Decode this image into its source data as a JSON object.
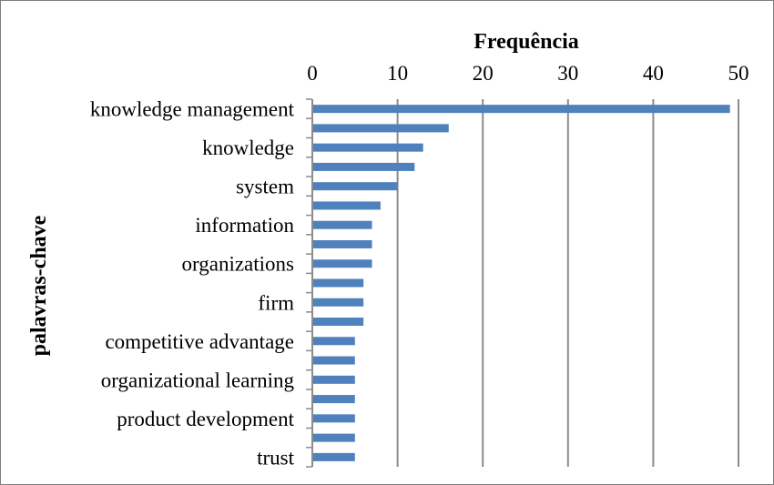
{
  "chart_data": {
    "type": "bar",
    "orientation": "horizontal",
    "title": "Frequência",
    "xlabel": "Frequência",
    "ylabel": "palavras-chave",
    "xlim": [
      0,
      50
    ],
    "x_ticks": [
      0,
      10,
      20,
      30,
      40,
      50
    ],
    "x_axis_position": "top",
    "grid": true,
    "legend": "none",
    "bar_color": "#4f81bd",
    "categories": [
      "knowledge management",
      "",
      "knowledge",
      "",
      "system",
      "",
      "information",
      "",
      "organizations",
      "",
      "firm",
      "",
      "competitive advantage",
      "",
      "organizational learning",
      "",
      "product development",
      "",
      "trust"
    ],
    "values": [
      49,
      16,
      13,
      12,
      10,
      8,
      7,
      7,
      7,
      6,
      6,
      6,
      5,
      5,
      5,
      5,
      5,
      5,
      5
    ]
  }
}
